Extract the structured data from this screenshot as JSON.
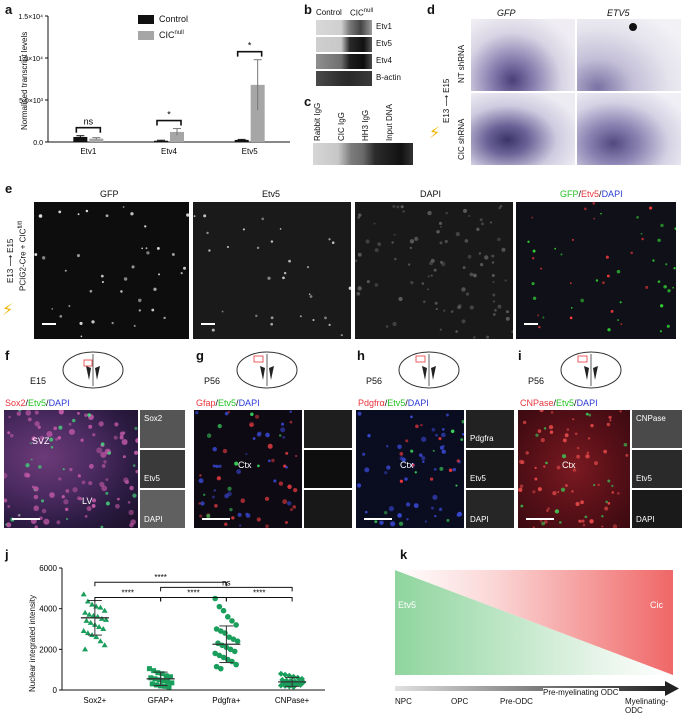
{
  "panels": {
    "a": "a",
    "b": "b",
    "c": "c",
    "d": "d",
    "e": "e",
    "f": "f",
    "g": "g",
    "h": "h",
    "i": "i",
    "j": "j",
    "k": "k"
  },
  "panel_a": {
    "ylabel": "Normalised transcript levels",
    "legend": [
      "Control",
      "CIC"
    ],
    "legend_sup": "null",
    "sig": [
      "ns",
      "*",
      "*"
    ]
  },
  "panel_b": {
    "col_control": "Control",
    "col_cic": "CIC",
    "col_cic_sup": "null",
    "rows": [
      "Etv1",
      "Etv5",
      "Etv4",
      "B-actin"
    ]
  },
  "panel_c": {
    "lanes": [
      "Rabbit IgG",
      "CIC IgG",
      "HH3 IgG",
      "Input DNA"
    ]
  },
  "panel_d": {
    "col1": "GFP",
    "col2": "ETV5",
    "row1": "NT shRNA",
    "row2": "CIC shRNA",
    "timeline": "E13 ⟶ E15"
  },
  "panel_e": {
    "titles": [
      "GFP",
      "Etv5",
      "DAPI"
    ],
    "merge": {
      "gfp": "GFP",
      "sep1": "/",
      "etv5": "Etv5",
      "sep2": "/",
      "dapi": "DAPI"
    },
    "side_line1": "E13 ⟶ E15",
    "side_line2": "PCIG2-Cre + CIC",
    "side_sup": "fl/fl"
  },
  "panel_f": {
    "age": "E15",
    "marker": "Sox2",
    "etv": "Etv5",
    "dapi": "DAPI",
    "region": "SVZ",
    "region2": "LV",
    "insets": [
      "Sox2",
      "Etv5",
      "DAPI"
    ]
  },
  "panel_g": {
    "age": "P56",
    "marker": "Gfap",
    "etv": "Etv5",
    "dapi": "DAPI",
    "region": "Ctx"
  },
  "panel_h": {
    "age": "P56",
    "marker": "Pdgfrα",
    "etv": "Etv5",
    "dapi": "DAPI",
    "region": "Ctx",
    "insets": [
      "Pdgfra",
      "Etv5",
      "DAPI"
    ]
  },
  "panel_i": {
    "age": "P56",
    "marker": "CNPase",
    "etv": "Etv5",
    "dapi": "DAPI",
    "region": "Ctx",
    "insets": [
      "CNPase",
      "Etv5",
      "DAPI"
    ]
  },
  "panel_k": {
    "left_label": "Etv5",
    "right_label": "Cic",
    "stages": [
      "NPC",
      "OPC",
      "Pre-ODC",
      "Pre-myelinating ODC",
      "Myelinating-ODC"
    ]
  },
  "colors": {
    "green": "#1a9e5c",
    "red": "#e8363d",
    "grey": "#a6a6a6",
    "black": "#111111",
    "blue": "#2a3bd6"
  },
  "chart_data": [
    {
      "type": "bar",
      "panel": "a",
      "categories": [
        "Etv1",
        "Etv4",
        "Etv5"
      ],
      "series": [
        {
          "name": "Control",
          "values": [
            600,
            150,
            250
          ],
          "errors": [
            150,
            60,
            60
          ]
        },
        {
          "name": "CIC null",
          "values": [
            400,
            1200,
            6800
          ],
          "errors": [
            120,
            400,
            3000
          ]
        }
      ],
      "ylabel": "Normalised transcript levels",
      "yticks": [
        "0.0",
        "5.0×10³",
        "1.0×10⁴",
        "1.5×10⁴"
      ],
      "ylim": [
        0,
        15000
      ]
    },
    {
      "type": "scatter",
      "panel": "j",
      "categories": [
        "Sox2+",
        "GFAP+",
        "Pdgfra+",
        "CNPase+"
      ],
      "ylabel": "Nuclear integrated intensity",
      "ylim": [
        0,
        6000
      ],
      "yticks": [
        "0",
        "2000",
        "4000",
        "6000"
      ],
      "means": [
        3550,
        550,
        2250,
        400
      ],
      "sd": [
        850,
        330,
        900,
        220
      ],
      "sig": [
        "****",
        "****",
        "****",
        "****",
        "ns"
      ],
      "points": [
        [
          4700,
          4350,
          4200,
          4100,
          4050,
          3900,
          3800,
          3700,
          3650,
          3600,
          3500,
          3450,
          3400,
          3300,
          3200,
          3100,
          3000,
          2900,
          2800,
          2700,
          2600,
          2400,
          2200,
          2000
        ],
        [
          1050,
          950,
          850,
          800,
          700,
          650,
          600,
          550,
          500,
          450,
          400,
          350,
          300,
          250,
          200,
          180,
          150
        ],
        [
          4500,
          4100,
          3900,
          3600,
          3400,
          3200,
          3000,
          2900,
          2800,
          2600,
          2500,
          2400,
          2300,
          2200,
          2100,
          2000,
          1900,
          1800,
          1700,
          1600,
          1500,
          1400,
          1250,
          1150,
          1050
        ],
        [
          800,
          750,
          700,
          650,
          600,
          550,
          500,
          470,
          450,
          420,
          400,
          380,
          350,
          320,
          300,
          280,
          250,
          220,
          200,
          180,
          150
        ]
      ]
    }
  ]
}
